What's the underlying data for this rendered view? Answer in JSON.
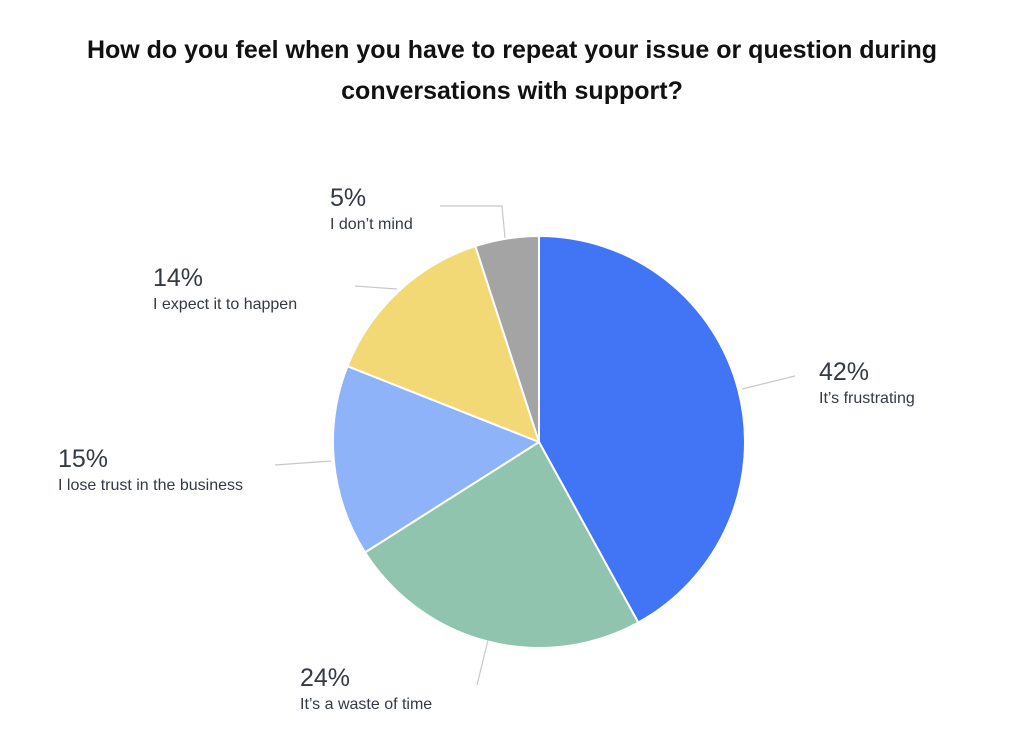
{
  "title_lines": [
    "How do you feel when you have to repeat your issue or question during",
    "conversations with support?"
  ],
  "chart_data": {
    "type": "pie",
    "title": "How do you feel when you have to repeat your issue or question during conversations with support?",
    "unit": "%",
    "slices": [
      {
        "label": "It’s frustrating",
        "value": 42,
        "display": "42%",
        "color": "#4175f5"
      },
      {
        "label": "It’s a waste of time",
        "value": 24,
        "display": "24%",
        "color": "#90c4ae"
      },
      {
        "label": "I lose trust in the business",
        "value": 15,
        "display": "15%",
        "color": "#8fb3f8"
      },
      {
        "label": "I expect it to happen",
        "value": 14,
        "display": "14%",
        "color": "#f3d975"
      },
      {
        "label": "I don’t mind",
        "value": 5,
        "display": "5%",
        "color": "#a4a4a4"
      }
    ],
    "start": "12 o'clock",
    "direction": "clockwise",
    "legend": "none (outside labels with leader lines)"
  }
}
